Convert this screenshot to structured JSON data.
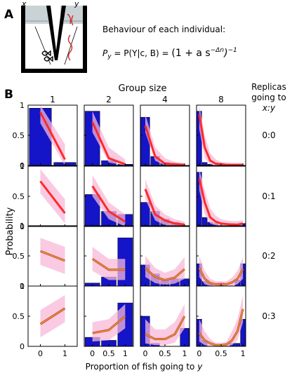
{
  "panel_a": {
    "label": "A",
    "maze_x": "x",
    "maze_y": "y",
    "behaviour_title": "Behaviour of each individual:",
    "formula_lhs": "P",
    "formula_sub": "y",
    "formula_mid": " = P(Y|c, B) = ",
    "formula_rhs": "(1 + a s",
    "formula_exp": "−Δn",
    "formula_close": ")",
    "formula_pow": "−1"
  },
  "panel_b": {
    "label": "B",
    "col_header": "Group size",
    "row_header_line1": "Replicas",
    "row_header_line2": "going to",
    "row_header_line3": "x:y",
    "ylabel": "Probability",
    "xlabel_prefix": "Proportion of fish going to ",
    "xlabel_var": "y",
    "colors": {
      "bar": "#1414c8",
      "band": "#f7b8d8",
      "line": "#ff2a2a",
      "line_inner": "#9acd32"
    }
  },
  "chart_data": {
    "type": "bar",
    "group_sizes": [
      "1",
      "2",
      "4",
      "8"
    ],
    "replica_conditions": [
      "0:0",
      "0:1",
      "0:2",
      "0:3"
    ],
    "ylim": [
      0,
      1
    ],
    "y_ticks": [
      "0",
      "0.5",
      "1"
    ],
    "x_tick_labels": {
      "1": [
        "0",
        "1"
      ],
      "2": [
        "0",
        "0.5",
        "1"
      ],
      "4": [
        "0",
        "0.5",
        "1"
      ],
      "8": [
        "0",
        "0.5",
        "1"
      ]
    },
    "cells": [
      [
        {
          "bars": [
            0.95,
            0.05
          ],
          "line": [
            0.88,
            0.1
          ],
          "band": [
            [
              0.7,
              1.0
            ],
            [
              0.0,
              0.35
            ]
          ],
          "green": false
        },
        {
          "bars": [
            0.9,
            0.08,
            0.02
          ],
          "line": [
            0.72,
            0.12,
            0.02
          ],
          "band": [
            [
              0.55,
              0.9
            ],
            [
              0.05,
              0.3
            ],
            [
              0.0,
              0.1
            ]
          ],
          "green": false
        },
        {
          "bars": [
            0.8,
            0.15,
            0.05,
            0.0,
            0.0
          ],
          "line": [
            0.66,
            0.15,
            0.03,
            0.02,
            0.01
          ],
          "band": [
            [
              0.55,
              0.85
            ],
            [
              0.08,
              0.3
            ],
            [
              0.0,
              0.12
            ],
            [
              0.0,
              0.06
            ],
            [
              0.0,
              0.04
            ]
          ],
          "green": false
        },
        {
          "bars": [
            0.9,
            0.05,
            0.02,
            0.0,
            0.0,
            0.0,
            0.0,
            0.0,
            0.0
          ],
          "line": [
            0.85,
            0.3,
            0.08,
            0.03,
            0.02,
            0.01,
            0.01,
            0.01,
            0.01
          ],
          "band": [
            [
              0.6,
              1.0
            ],
            [
              0.12,
              0.5
            ],
            [
              0.02,
              0.2
            ],
            [
              0.0,
              0.1
            ],
            [
              0.0,
              0.06
            ],
            [
              0.0,
              0.05
            ],
            [
              0.0,
              0.04
            ],
            [
              0.0,
              0.04
            ],
            [
              0.0,
              0.04
            ]
          ],
          "green": false
        }
      ],
      [
        {
          "bars": [
            0.0,
            0.0
          ],
          "line": [
            0.75,
            0.22
          ],
          "band": [
            [
              0.55,
              0.95
            ],
            [
              0.05,
              0.45
            ]
          ],
          "green": false
        },
        {
          "bars": [
            0.53,
            0.25,
            0.2
          ],
          "line": [
            0.67,
            0.25,
            0.08
          ],
          "band": [
            [
              0.5,
              0.85
            ],
            [
              0.12,
              0.4
            ],
            [
              0.0,
              0.2
            ]
          ],
          "green": false
        },
        {
          "bars": [
            0.4,
            0.25,
            0.12,
            0.07,
            0.0
          ],
          "line": [
            0.62,
            0.2,
            0.1,
            0.05,
            0.03
          ],
          "band": [
            [
              0.45,
              0.78
            ],
            [
              0.1,
              0.35
            ],
            [
              0.02,
              0.2
            ],
            [
              0.0,
              0.12
            ],
            [
              0.0,
              0.08
            ]
          ],
          "green": false
        },
        {
          "bars": [
            0.9,
            0.15,
            0.07,
            0.05,
            0.0,
            0.0,
            0.05,
            0.0,
            0.05
          ],
          "line": [
            0.8,
            0.4,
            0.15,
            0.08,
            0.05,
            0.04,
            0.03,
            0.03,
            0.05
          ],
          "band": [
            [
              0.6,
              0.95
            ],
            [
              0.2,
              0.6
            ],
            [
              0.05,
              0.3
            ],
            [
              0.02,
              0.18
            ],
            [
              0.0,
              0.12
            ],
            [
              0.0,
              0.1
            ],
            [
              0.0,
              0.09
            ],
            [
              0.0,
              0.09
            ],
            [
              0.0,
              0.1
            ]
          ],
          "green": false
        }
      ],
      [
        {
          "bars": [
            0.0,
            0.0
          ],
          "line": [
            0.58,
            0.42
          ],
          "band": [
            [
              0.35,
              0.8
            ],
            [
              0.2,
              0.65
            ]
          ],
          "green": true
        },
        {
          "bars": [
            0.05,
            0.15,
            0.8
          ],
          "line": [
            0.45,
            0.27,
            0.27
          ],
          "band": [
            [
              0.25,
              0.65
            ],
            [
              0.1,
              0.45
            ],
            [
              0.1,
              0.45
            ]
          ],
          "green": true
        },
        {
          "bars": [
            0.35,
            0.2,
            0.1,
            0.12,
            0.12
          ],
          "line": [
            0.3,
            0.15,
            0.1,
            0.14,
            0.28
          ],
          "band": [
            [
              0.15,
              0.5
            ],
            [
              0.05,
              0.3
            ],
            [
              0.02,
              0.22
            ],
            [
              0.04,
              0.28
            ],
            [
              0.12,
              0.48
            ]
          ],
          "green": true
        },
        {
          "bars": [
            0.37,
            0.08,
            0.05,
            0.0,
            0.05,
            0.0,
            0.0,
            0.1,
            0.37
          ],
          "line": [
            0.3,
            0.12,
            0.05,
            0.03,
            0.03,
            0.03,
            0.06,
            0.12,
            0.28
          ],
          "band": [
            [
              0.15,
              0.5
            ],
            [
              0.03,
              0.25
            ],
            [
              0.0,
              0.12
            ],
            [
              0.0,
              0.08
            ],
            [
              0.0,
              0.08
            ],
            [
              0.0,
              0.08
            ],
            [
              0.0,
              0.14
            ],
            [
              0.03,
              0.25
            ],
            [
              0.12,
              0.48
            ]
          ],
          "green": true
        }
      ],
      [
        {
          "bars": [
            0.0,
            0.0
          ],
          "line": [
            0.37,
            0.63
          ],
          "band": [
            [
              0.15,
              0.6
            ],
            [
              0.4,
              0.85
            ]
          ],
          "green": true
        },
        {
          "bars": [
            0.15,
            0.1,
            0.72
          ],
          "line": [
            0.22,
            0.27,
            0.5
          ],
          "band": [
            [
              0.08,
              0.4
            ],
            [
              0.1,
              0.45
            ],
            [
              0.3,
              0.7
            ]
          ],
          "green": true
        },
        {
          "bars": [
            0.5,
            0.05,
            0.0,
            0.0,
            0.3
          ],
          "line": [
            0.2,
            0.12,
            0.12,
            0.2,
            0.5
          ],
          "band": [
            [
              0.05,
              0.45
            ],
            [
              0.02,
              0.28
            ],
            [
              0.02,
              0.28
            ],
            [
              0.06,
              0.4
            ],
            [
              0.3,
              0.7
            ]
          ],
          "green": true
        },
        {
          "bars": [
            0.45,
            0.1,
            0.0,
            0.0,
            0.0,
            0.0,
            0.05,
            0.05,
            0.45
          ],
          "line": [
            0.22,
            0.1,
            0.05,
            0.02,
            0.02,
            0.03,
            0.1,
            0.25,
            0.62
          ],
          "band": [
            [
              0.08,
              0.45
            ],
            [
              0.02,
              0.25
            ],
            [
              0.0,
              0.12
            ],
            [
              0.0,
              0.06
            ],
            [
              0.0,
              0.06
            ],
            [
              0.0,
              0.08
            ],
            [
              0.02,
              0.25
            ],
            [
              0.1,
              0.45
            ],
            [
              0.4,
              0.85
            ]
          ],
          "green": true
        }
      ]
    ]
  }
}
